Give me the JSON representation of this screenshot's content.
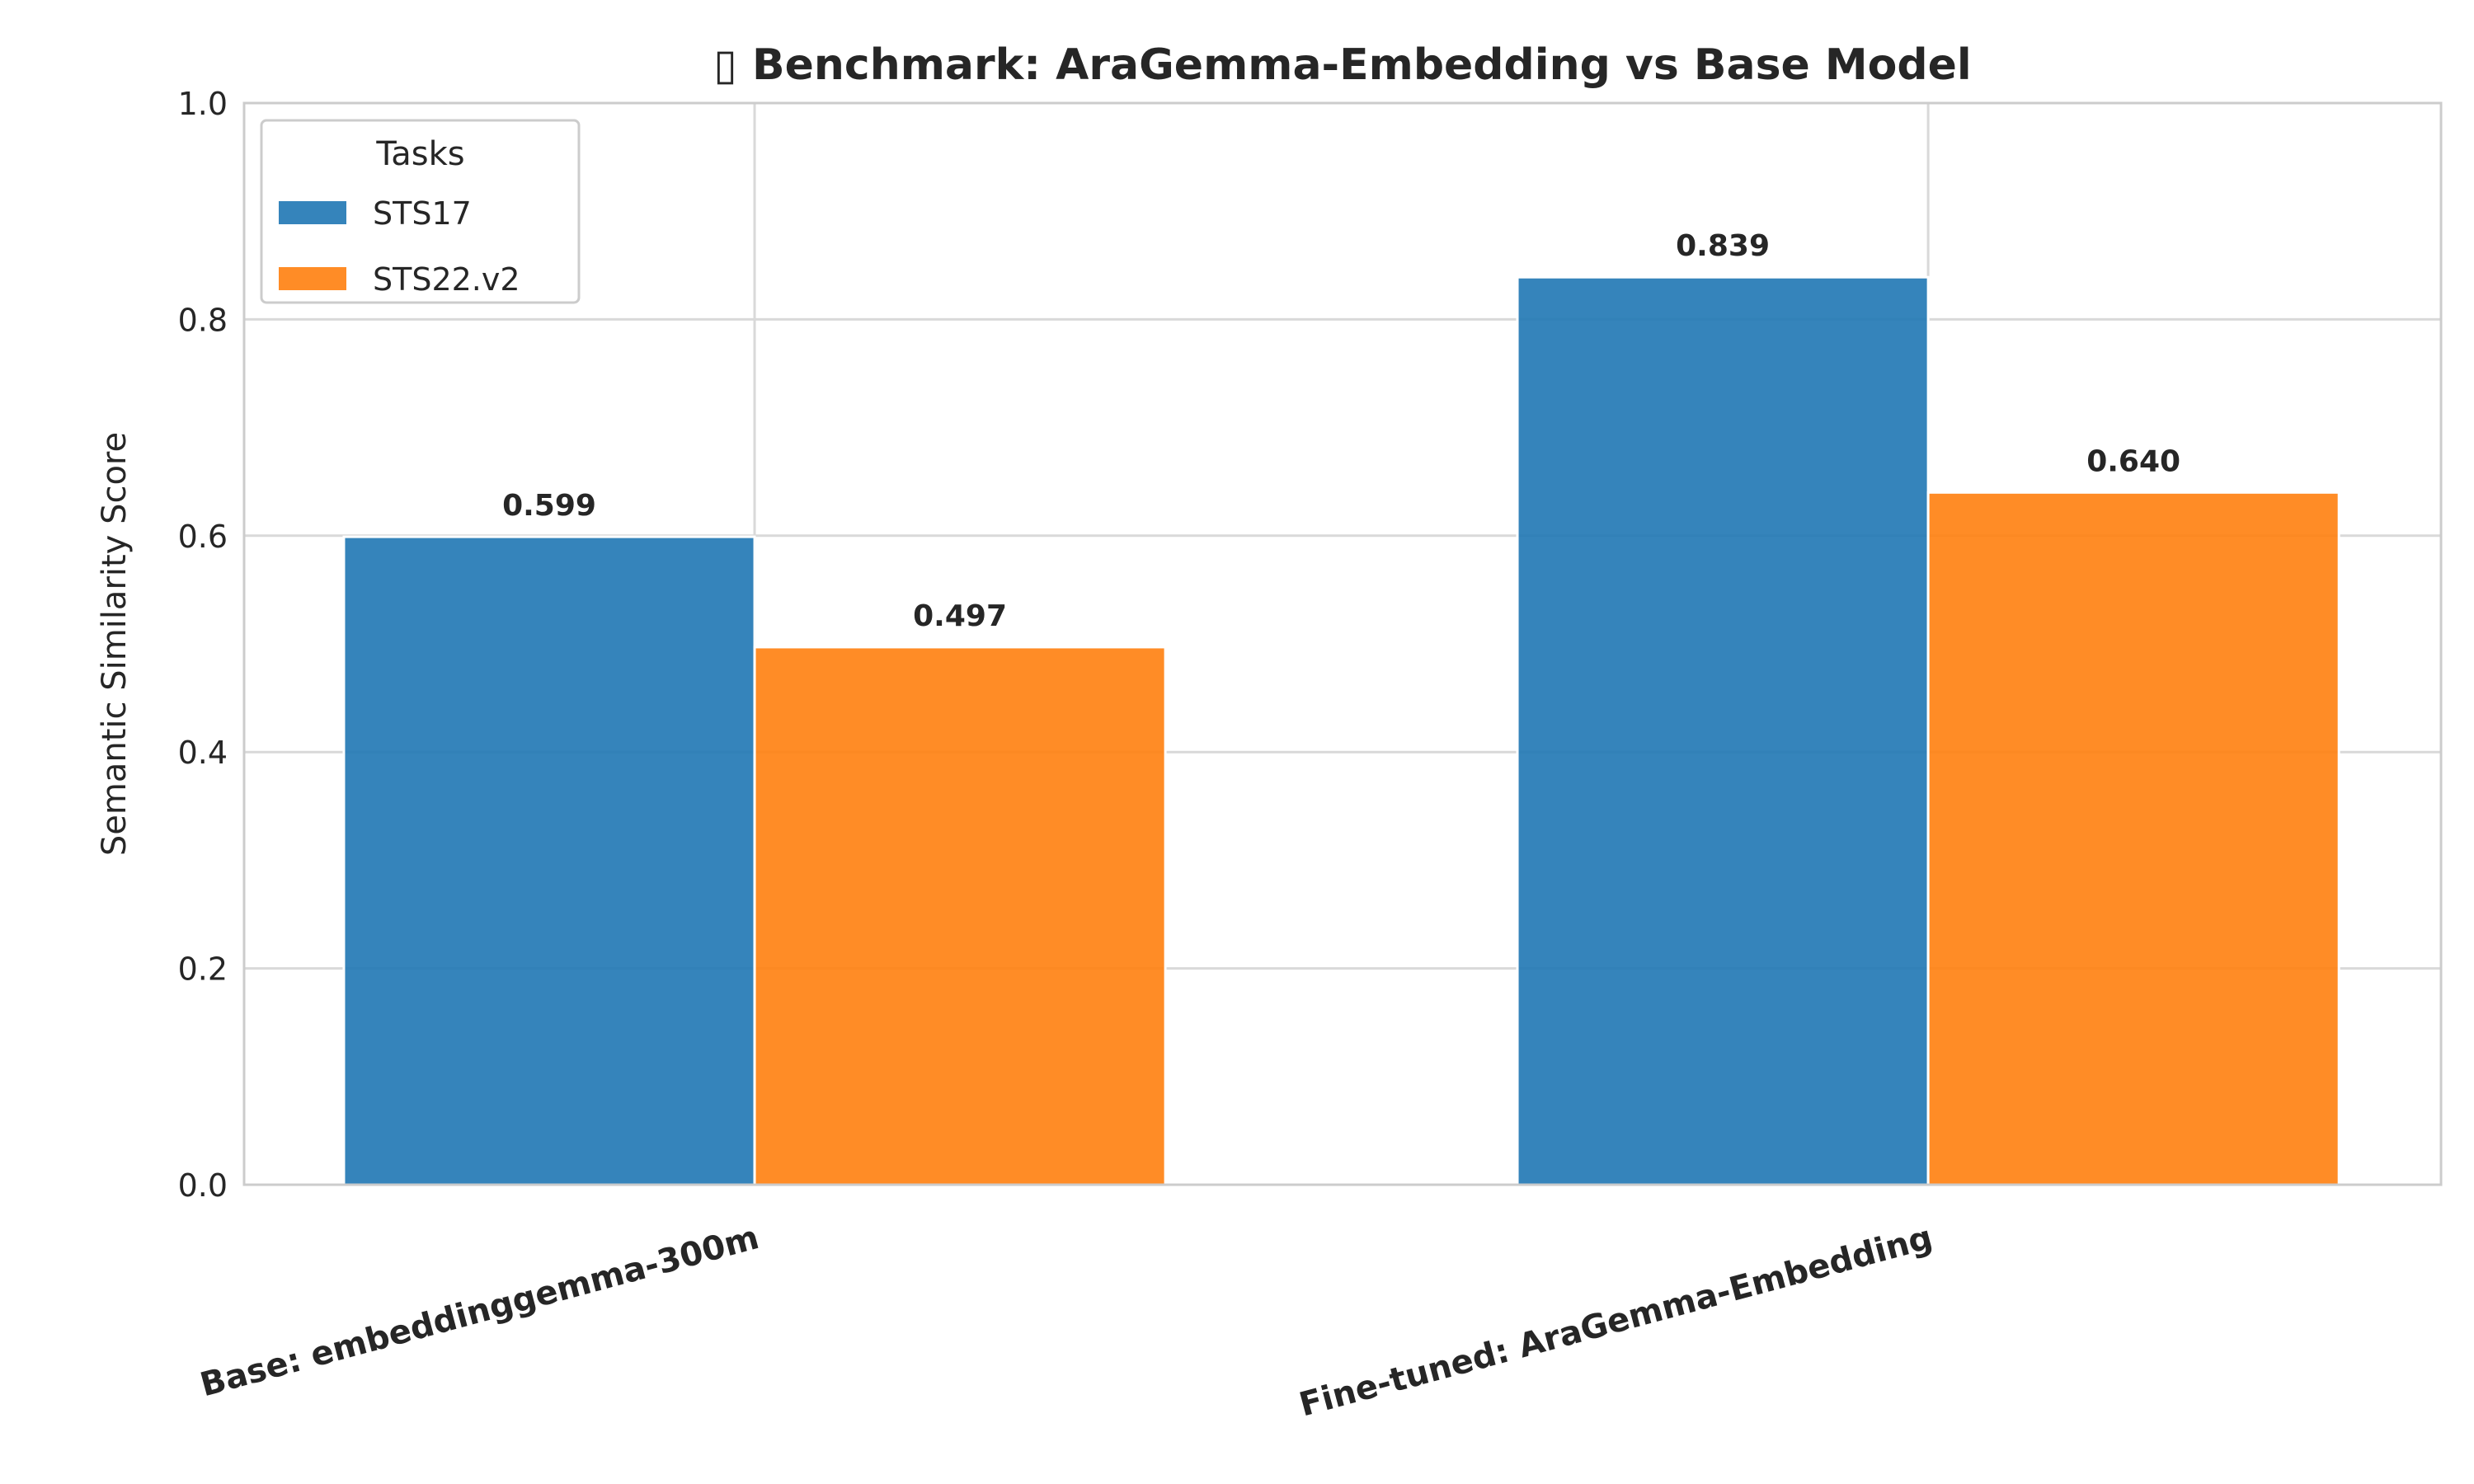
{
  "chart_data": {
    "type": "bar",
    "title": "▯ Benchmark: AraGemma-Embedding vs Base Model",
    "xlabel": "",
    "ylabel": "Semantic Similarity Score",
    "ylim": [
      0,
      1.0
    ],
    "yticks": [
      "0.0",
      "0.2",
      "0.4",
      "0.6",
      "0.8",
      "1.0"
    ],
    "categories": [
      "Base: embeddinggemma-300m",
      "Fine-tuned: AraGemma-Embedding"
    ],
    "series": [
      {
        "name": "STS17",
        "values": [
          0.599,
          0.839
        ],
        "labels": [
          "0.599",
          "0.839"
        ],
        "color": "#1f77b4"
      },
      {
        "name": "STS22.v2",
        "values": [
          0.497,
          0.64
        ],
        "labels": [
          "0.497",
          "0.640"
        ],
        "color": "#ff7f0e"
      }
    ],
    "legend": {
      "title": "Tasks",
      "placement": "top-left"
    },
    "grid": true
  }
}
